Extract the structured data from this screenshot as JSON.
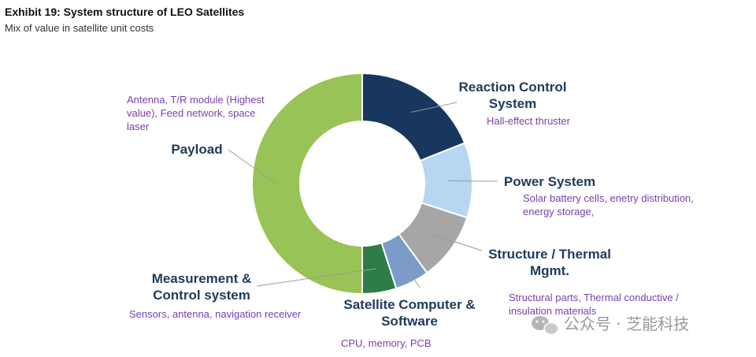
{
  "title": "Exhibit 19: System structure of LEO Satellites",
  "subtitle": "Mix of value in satellite unit costs",
  "watermark": "公众号 · 芝能科技",
  "chart_data": {
    "type": "pie",
    "donut": true,
    "legend": "none",
    "slices": [
      {
        "name": "Reaction Control System",
        "label_lines": [
          "Reaction Control",
          "System"
        ],
        "desc_lines": [
          "Hall-effect thruster"
        ],
        "value": 19,
        "color": "#17375e"
      },
      {
        "name": "Power System",
        "label_lines": [
          "Power System"
        ],
        "desc_lines": [
          "Solar battery cells, enetry distribution,",
          "energy storage,"
        ],
        "value": 11,
        "color": "#b7d6f2"
      },
      {
        "name": "Structure / Thermal Mgmt.",
        "label_lines": [
          "Structure / Thermal",
          "Mgmt."
        ],
        "desc_lines": [
          "Structural parts, Thermal conductive /",
          "insulation materials"
        ],
        "value": 10,
        "color": "#a6a6a6"
      },
      {
        "name": "Satellite Computer & Software",
        "label_lines": [
          "Satellite Computer &",
          "Software"
        ],
        "desc_lines": [
          "CPU, memory, PCB"
        ],
        "value": 5,
        "color": "#7b9cc9"
      },
      {
        "name": "Measurement & Control system",
        "label_lines": [
          "Measurement &",
          "Control system"
        ],
        "desc_lines": [
          "Sensors, antenna, navigation receiver"
        ],
        "value": 5,
        "color": "#2e7d46"
      },
      {
        "name": "Payload",
        "label_lines": [
          "Payload"
        ],
        "desc_lines": [
          "Antenna, T/R module (Highest",
          "value), Feed network, space",
          "laser"
        ],
        "value": 50,
        "color": "#98c356"
      }
    ]
  }
}
